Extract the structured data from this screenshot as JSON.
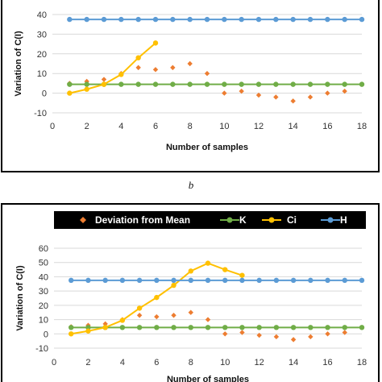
{
  "panel_label_b": "b",
  "legend": [
    {
      "label": "Deviation from Mean",
      "color": "#ED7D31",
      "marker": "diamond"
    },
    {
      "label": "K",
      "color": "#70AD47",
      "marker": "circle-line"
    },
    {
      "label": "Ci",
      "color": "#FFC000",
      "marker": "circle-line"
    },
    {
      "label": "H",
      "color": "#5B9BD5",
      "marker": "circle-line"
    }
  ],
  "chart_data": [
    {
      "type": "line",
      "xlabel": "Number of samples",
      "ylabel": "Variation of C(I)",
      "xlim": [
        0,
        18
      ],
      "ylim": [
        -10,
        40
      ],
      "xticks": [
        0,
        2,
        4,
        6,
        8,
        10,
        12,
        14,
        16,
        18
      ],
      "yticks": [
        -10,
        0,
        10,
        20,
        30,
        40
      ],
      "grid": true,
      "series": [
        {
          "name": "Deviation from Mean",
          "style": "scatter",
          "color": "#ED7D31",
          "x": [
            1,
            2,
            3,
            4,
            5,
            6,
            7,
            8,
            9,
            10,
            11,
            12,
            13,
            14,
            15,
            16,
            17
          ],
          "y": [
            5,
            6,
            7,
            10,
            13,
            12,
            13,
            15,
            10,
            0,
            1,
            -1,
            -2,
            -4,
            -2,
            0,
            1
          ]
        },
        {
          "name": "K",
          "style": "line",
          "color": "#70AD47",
          "x": [
            1,
            2,
            3,
            4,
            5,
            6,
            7,
            8,
            9,
            10,
            11,
            12,
            13,
            14,
            15,
            16,
            17,
            18
          ],
          "y": [
            4.5,
            4.5,
            4.5,
            4.5,
            4.5,
            4.5,
            4.5,
            4.5,
            4.5,
            4.5,
            4.5,
            4.5,
            4.5,
            4.5,
            4.5,
            4.5,
            4.5,
            4.5
          ]
        },
        {
          "name": "Ci",
          "style": "line",
          "color": "#FFC000",
          "x": [
            1,
            2,
            3,
            4,
            5,
            6
          ],
          "y": [
            0,
            2,
            4.5,
            9.5,
            18,
            25.5
          ]
        },
        {
          "name": "H",
          "style": "line",
          "color": "#5B9BD5",
          "x": [
            1,
            2,
            3,
            4,
            5,
            6,
            7,
            8,
            9,
            10,
            11,
            12,
            13,
            14,
            15,
            16,
            17,
            18
          ],
          "y": [
            37.5,
            37.5,
            37.5,
            37.5,
            37.5,
            37.5,
            37.5,
            37.5,
            37.5,
            37.5,
            37.5,
            37.5,
            37.5,
            37.5,
            37.5,
            37.5,
            37.5,
            37.5
          ]
        }
      ]
    },
    {
      "type": "line",
      "xlabel": "Number of samples",
      "ylabel": "Variation of C(I)",
      "xlim": [
        0,
        18
      ],
      "ylim": [
        -10,
        60
      ],
      "xticks": [
        0,
        2,
        4,
        6,
        8,
        10,
        12,
        14,
        16,
        18
      ],
      "yticks": [
        -10,
        0,
        10,
        20,
        30,
        40,
        50,
        60
      ],
      "grid": true,
      "legend_position": "top",
      "series": [
        {
          "name": "Deviation from Mean",
          "style": "scatter",
          "color": "#ED7D31",
          "x": [
            1,
            2,
            3,
            4,
            5,
            6,
            7,
            8,
            9,
            10,
            11,
            12,
            13,
            14,
            15,
            16,
            17
          ],
          "y": [
            5,
            6,
            7,
            10,
            13,
            12,
            13,
            15,
            10,
            0,
            1,
            -1,
            -2,
            -4,
            -2,
            0,
            1
          ]
        },
        {
          "name": "K",
          "style": "line",
          "color": "#70AD47",
          "x": [
            1,
            2,
            3,
            4,
            5,
            6,
            7,
            8,
            9,
            10,
            11,
            12,
            13,
            14,
            15,
            16,
            17,
            18
          ],
          "y": [
            4.5,
            4.5,
            4.5,
            4.5,
            4.5,
            4.5,
            4.5,
            4.5,
            4.5,
            4.5,
            4.5,
            4.5,
            4.5,
            4.5,
            4.5,
            4.5,
            4.5,
            4.5
          ]
        },
        {
          "name": "Ci",
          "style": "line",
          "color": "#FFC000",
          "x": [
            1,
            2,
            3,
            4,
            5,
            6,
            7,
            8,
            9,
            10,
            11
          ],
          "y": [
            0,
            2,
            4.5,
            9.5,
            18,
            25.5,
            34,
            44,
            49.5,
            45,
            41
          ]
        },
        {
          "name": "H",
          "style": "line",
          "color": "#5B9BD5",
          "x": [
            1,
            2,
            3,
            4,
            5,
            6,
            7,
            8,
            9,
            10,
            11,
            12,
            13,
            14,
            15,
            16,
            17,
            18
          ],
          "y": [
            37.5,
            37.5,
            37.5,
            37.5,
            37.5,
            37.5,
            37.5,
            37.5,
            37.5,
            37.5,
            37.5,
            37.5,
            37.5,
            37.5,
            37.5,
            37.5,
            37.5,
            37.5
          ]
        }
      ]
    }
  ]
}
